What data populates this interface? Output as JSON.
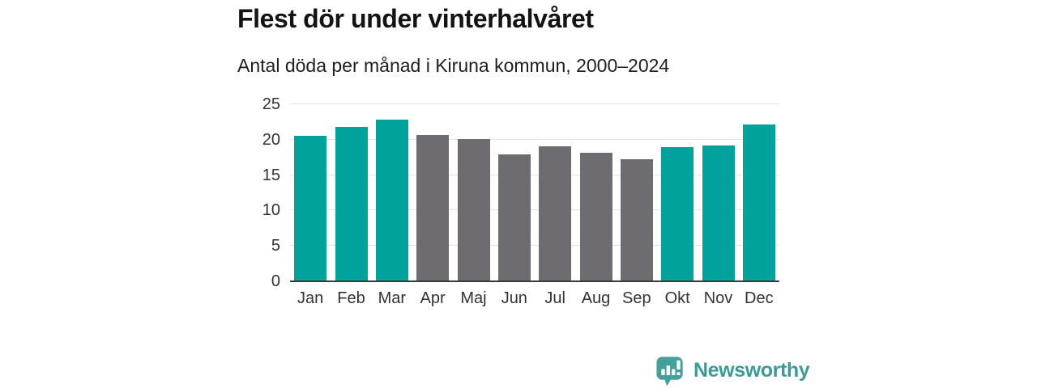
{
  "chart_data": {
    "type": "bar",
    "title": "Flest dör under vinterhalvåret",
    "subtitle": "Antal döda per månad i Kiruna kommun, 2000–2024",
    "categories": [
      "Jan",
      "Feb",
      "Mar",
      "Apr",
      "Maj",
      "Jun",
      "Jul",
      "Aug",
      "Sep",
      "Okt",
      "Nov",
      "Dec"
    ],
    "values": [
      20.6,
      21.8,
      22.8,
      20.7,
      20.1,
      17.9,
      19.1,
      18.1,
      17.2,
      18.9,
      19.2,
      22.2
    ],
    "bar_colors": [
      "teal",
      "teal",
      "teal",
      "gray",
      "gray",
      "gray",
      "gray",
      "gray",
      "gray",
      "teal",
      "teal",
      "teal"
    ],
    "palette": {
      "teal": "#00a29b",
      "gray": "#6e6c71"
    },
    "xlabel": "",
    "ylabel": "",
    "ylim": [
      0,
      25
    ],
    "yticks": [
      0,
      5,
      10,
      15,
      20,
      25
    ],
    "grid": true,
    "legend_position": "none"
  },
  "branding": {
    "name": "Newsworthy",
    "color": "#3a9b97",
    "icon": "newsworthy-logo-icon"
  }
}
